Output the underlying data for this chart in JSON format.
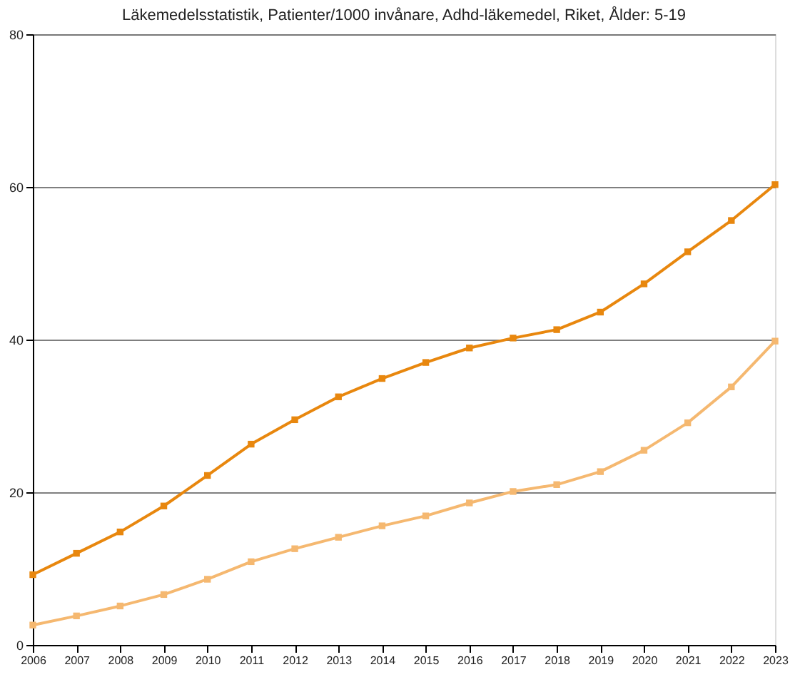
{
  "chart_data": {
    "type": "line",
    "title": "Läkemedelsstatistik, Patienter/1000 invånare, Adhd-läkemedel, Riket, Ålder: 5-19",
    "categories": [
      "2006",
      "2007",
      "2008",
      "2009",
      "2010",
      "2011",
      "2012",
      "2013",
      "2014",
      "2015",
      "2016",
      "2017",
      "2018",
      "2019",
      "2020",
      "2021",
      "2022",
      "2023"
    ],
    "series": [
      {
        "color": "#e8870e",
        "values": [
          9.2,
          12.0,
          14.8,
          18.2,
          22.2,
          26.3,
          29.5,
          32.5,
          34.9,
          37.0,
          38.9,
          40.2,
          41.3,
          43.6,
          47.3,
          51.5,
          55.6,
          60.3
        ]
      },
      {
        "color": "#f5b870",
        "values": [
          2.6,
          3.8,
          5.1,
          6.6,
          8.6,
          10.9,
          12.6,
          14.1,
          15.6,
          16.9,
          18.6,
          20.1,
          21.0,
          22.7,
          25.5,
          29.1,
          33.8,
          39.8
        ]
      }
    ],
    "ylim": [
      0,
      80
    ],
    "yticks": [
      0,
      20,
      40,
      60,
      80
    ],
    "grid": "y",
    "marker": "square",
    "line_style": "solid",
    "legend": false
  }
}
